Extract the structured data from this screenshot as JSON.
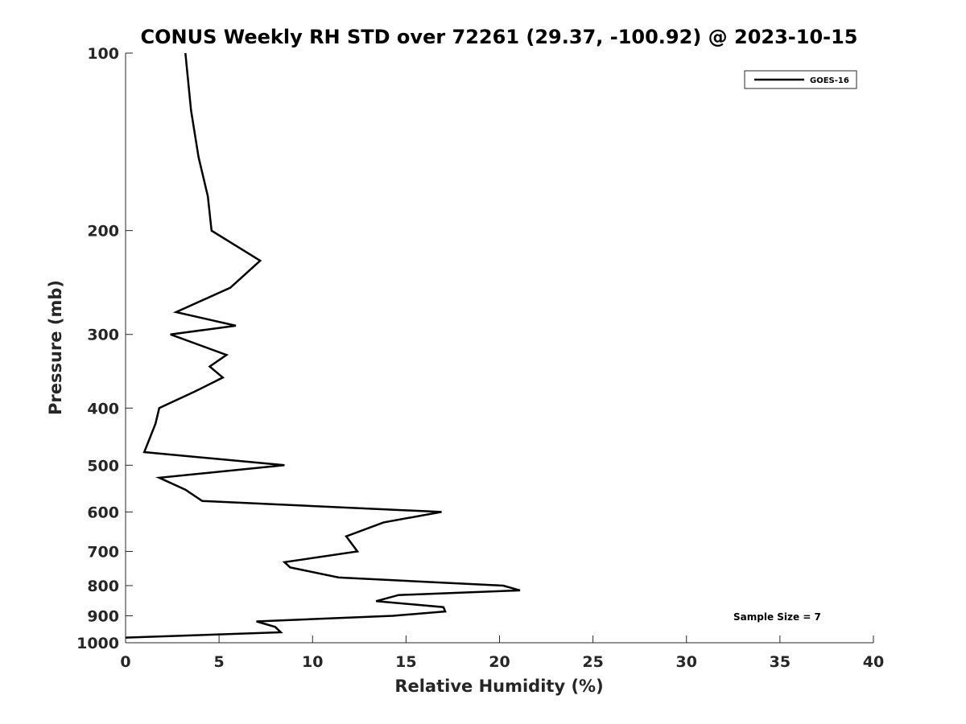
{
  "chart_data": {
    "type": "line",
    "title": "CONUS Weekly RH STD over 72261 (29.37, -100.92) @ 2023-10-15",
    "xlabel": "Relative Humidity (%)",
    "ylabel": "Pressure (mb)",
    "xlim": [
      0,
      40
    ],
    "ylim": [
      100,
      1000
    ],
    "y_scale": "log",
    "y_reversed": true,
    "x_ticks": [
      0,
      5,
      10,
      15,
      20,
      25,
      30,
      35,
      40
    ],
    "y_ticks": [
      100,
      200,
      300,
      400,
      500,
      600,
      700,
      800,
      900,
      1000
    ],
    "grid": false,
    "legend_position": "top-right",
    "annotation": "Sample Size = 7",
    "line_color": "#000000",
    "series": [
      {
        "name": "GOES-16",
        "x": [
          3.2,
          3.5,
          3.9,
          4.4,
          4.6,
          7.2,
          5.6,
          2.7,
          5.9,
          2.4,
          5.4,
          4.5,
          5.2,
          3.7,
          1.8,
          1.6,
          1.0,
          8.5,
          1.8,
          3.2,
          4.1,
          16.9,
          13.8,
          11.8,
          12.4,
          8.5,
          8.8,
          11.4,
          20.2,
          21.1,
          14.6,
          13.4,
          17.0,
          17.1,
          14.3,
          7.0,
          8.0,
          8.3,
          0.0
        ],
        "y": [
          100,
          125,
          150,
          175,
          200,
          225,
          250,
          275,
          290,
          300,
          325,
          340,
          355,
          375,
          400,
          425,
          475,
          500,
          525,
          550,
          575,
          600,
          625,
          660,
          700,
          730,
          745,
          775,
          800,
          815,
          830,
          850,
          870,
          885,
          900,
          920,
          940,
          960,
          980
        ]
      }
    ]
  }
}
